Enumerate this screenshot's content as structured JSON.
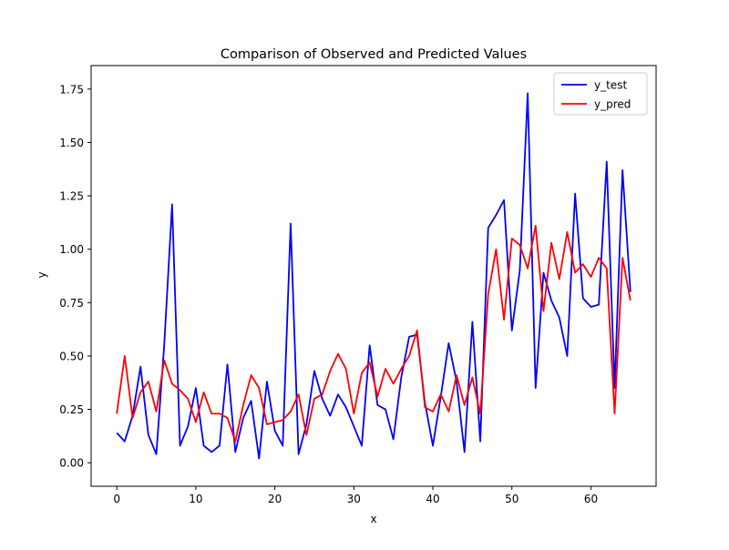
{
  "chart_data": {
    "type": "line",
    "title": "Comparison of Observed and Predicted Values",
    "xlabel": "x",
    "ylabel": "y",
    "xlim": [
      -3.25,
      68.25
    ],
    "ylim": [
      -0.11,
      1.86
    ],
    "xticks": [
      0,
      10,
      20,
      30,
      40,
      50,
      60
    ],
    "xtick_labels": [
      "0",
      "10",
      "20",
      "30",
      "40",
      "50",
      "60"
    ],
    "yticks": [
      0.0,
      0.25,
      0.5,
      0.75,
      1.0,
      1.25,
      1.5,
      1.75
    ],
    "ytick_labels": [
      "0.00",
      "0.25",
      "0.50",
      "0.75",
      "1.00",
      "1.25",
      "1.50",
      "1.75"
    ],
    "grid": false,
    "legend_position": "upper right",
    "x": [
      0,
      1,
      2,
      3,
      4,
      5,
      6,
      7,
      8,
      9,
      10,
      11,
      12,
      13,
      14,
      15,
      16,
      17,
      18,
      19,
      20,
      21,
      22,
      23,
      24,
      25,
      26,
      27,
      28,
      29,
      30,
      31,
      32,
      33,
      34,
      35,
      36,
      37,
      38,
      39,
      40,
      41,
      42,
      43,
      44,
      45,
      46,
      47,
      48,
      49,
      50,
      51,
      52,
      53,
      54,
      55,
      56,
      57,
      58,
      59,
      60,
      61,
      62,
      63,
      64,
      65
    ],
    "series": [
      {
        "name": "y_test",
        "color": "#0000ff",
        "values": [
          0.14,
          0.1,
          0.22,
          0.45,
          0.13,
          0.04,
          0.55,
          1.21,
          0.08,
          0.17,
          0.35,
          0.08,
          0.05,
          0.08,
          0.46,
          0.05,
          0.21,
          0.29,
          0.02,
          0.38,
          0.15,
          0.08,
          1.12,
          0.04,
          0.18,
          0.43,
          0.3,
          0.22,
          0.32,
          0.26,
          0.17,
          0.08,
          0.55,
          0.27,
          0.25,
          0.11,
          0.4,
          0.59,
          0.6,
          0.28,
          0.08,
          0.31,
          0.56,
          0.38,
          0.05,
          0.66,
          0.1,
          1.1,
          1.16,
          1.23,
          0.62,
          0.9,
          1.73,
          0.35,
          0.89,
          0.76,
          0.68,
          0.5,
          1.26,
          0.77,
          0.73,
          0.74,
          1.41,
          0.35,
          1.37,
          0.8
        ]
      },
      {
        "name": "y_pred",
        "color": "#ff0000",
        "values": [
          0.23,
          0.5,
          0.21,
          0.33,
          0.38,
          0.24,
          0.48,
          0.37,
          0.34,
          0.3,
          0.19,
          0.33,
          0.23,
          0.23,
          0.21,
          0.1,
          0.27,
          0.41,
          0.35,
          0.18,
          0.19,
          0.2,
          0.24,
          0.32,
          0.13,
          0.3,
          0.32,
          0.43,
          0.51,
          0.44,
          0.23,
          0.42,
          0.47,
          0.31,
          0.44,
          0.37,
          0.44,
          0.5,
          0.62,
          0.26,
          0.24,
          0.32,
          0.24,
          0.41,
          0.27,
          0.4,
          0.23,
          0.79,
          1.0,
          0.67,
          1.05,
          1.02,
          0.91,
          1.11,
          0.71,
          1.03,
          0.86,
          1.08,
          0.89,
          0.93,
          0.87,
          0.96,
          0.91,
          0.23,
          0.96,
          0.76
        ]
      }
    ]
  }
}
